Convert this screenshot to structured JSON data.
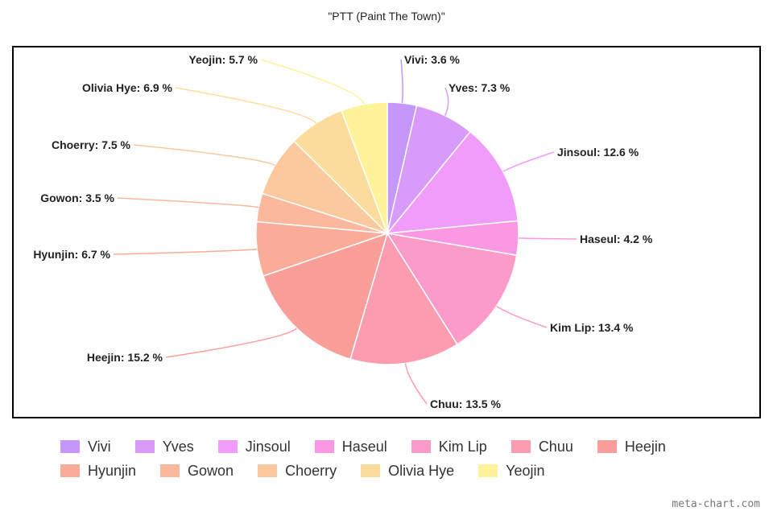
{
  "chart_data": {
    "type": "pie",
    "title": "\"PTT (Paint The Town)\"",
    "unit": "%",
    "legend_position": "bottom",
    "slices": [
      {
        "name": "Vivi",
        "value": 3.6,
        "color": "#c597fa"
      },
      {
        "name": "Yves",
        "value": 7.3,
        "color": "#d89bfa"
      },
      {
        "name": "Jinsoul",
        "value": 12.6,
        "color": "#f09cfb"
      },
      {
        "name": "Haseul",
        "value": 4.2,
        "color": "#fb98e4"
      },
      {
        "name": "Kim Lip",
        "value": 13.4,
        "color": "#fb9bc9"
      },
      {
        "name": "Chuu",
        "value": 13.5,
        "color": "#fb9cb1"
      },
      {
        "name": "Heejin",
        "value": 15.2,
        "color": "#fa9e9a"
      },
      {
        "name": "Hyunjin",
        "value": 6.7,
        "color": "#fbac98"
      },
      {
        "name": "Gowon",
        "value": 3.5,
        "color": "#fbb89d"
      },
      {
        "name": "Choerry",
        "value": 7.5,
        "color": "#fcc89d"
      },
      {
        "name": "Olivia Hye",
        "value": 6.9,
        "color": "#fcdc9b"
      },
      {
        "name": "Yeojin",
        "value": 5.7,
        "color": "#fef39a"
      }
    ]
  },
  "watermark": "meta-chart.com"
}
